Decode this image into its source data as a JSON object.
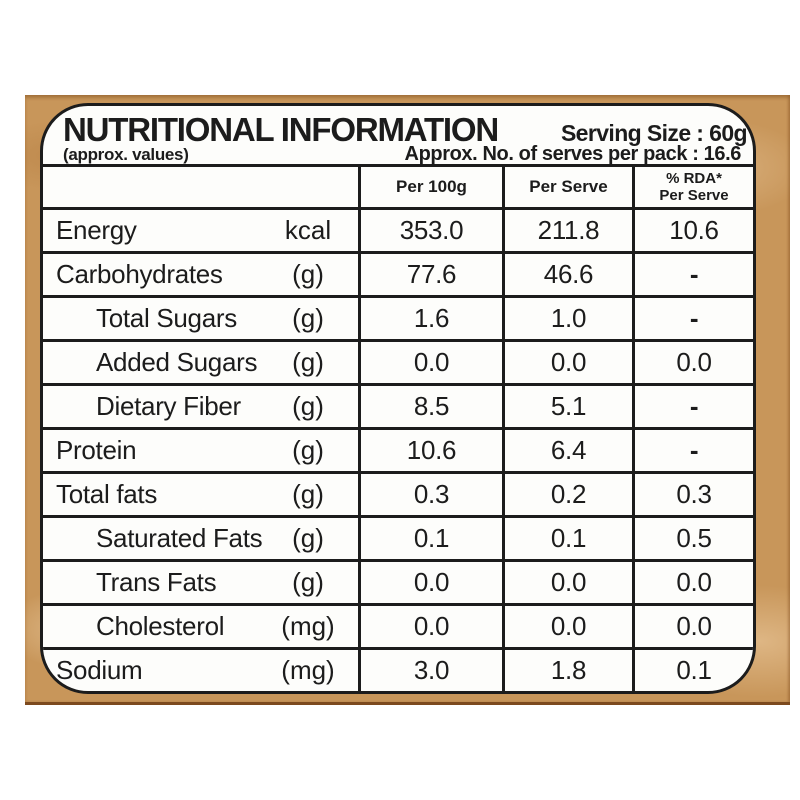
{
  "header": {
    "title": "NUTRITIONAL INFORMATION",
    "approx_note": "(approx. values)",
    "serving_size": "Serving Size : 60g",
    "serves_per_pack": "Approx. No. of serves per pack : 16.6"
  },
  "table": {
    "col_headers": {
      "per_100g": "Per 100g",
      "per_serve": "Per Serve",
      "rda_line1": "% RDA*",
      "rda_line2": "Per Serve"
    },
    "rows": [
      {
        "name": "Energy",
        "unit": "kcal",
        "per_100g": "353.0",
        "per_serve": "211.8",
        "rda": "10.6",
        "indent": 0
      },
      {
        "name": "Carbohydrates",
        "unit": "(g)",
        "per_100g": "77.6",
        "per_serve": "46.6",
        "rda": "-",
        "indent": 0
      },
      {
        "name": "Total Sugars",
        "unit": "(g)",
        "per_100g": "1.6",
        "per_serve": "1.0",
        "rda": "-",
        "indent": 1
      },
      {
        "name": "Added Sugars",
        "unit": "(g)",
        "per_100g": "0.0",
        "per_serve": "0.0",
        "rda": "0.0",
        "indent": 1
      },
      {
        "name": "Dietary Fiber",
        "unit": "(g)",
        "per_100g": "8.5",
        "per_serve": "5.1",
        "rda": "-",
        "indent": 1
      },
      {
        "name": "Protein",
        "unit": "(g)",
        "per_100g": "10.6",
        "per_serve": "6.4",
        "rda": "-",
        "indent": 0
      },
      {
        "name": "Total fats",
        "unit": "(g)",
        "per_100g": "0.3",
        "per_serve": "0.2",
        "rda": "0.3",
        "indent": 0
      },
      {
        "name": "Saturated Fats",
        "unit": "(g)",
        "per_100g": "0.1",
        "per_serve": "0.1",
        "rda": "0.5",
        "indent": 1
      },
      {
        "name": "Trans Fats",
        "unit": "(g)",
        "per_100g": "0.0",
        "per_serve": "0.0",
        "rda": "0.0",
        "indent": 1
      },
      {
        "name": "Cholesterol",
        "unit": "(mg)",
        "per_100g": "0.0",
        "per_serve": "0.0",
        "rda": "0.0",
        "indent": 1
      },
      {
        "name": "Sodium",
        "unit": "(mg)",
        "per_100g": "3.0",
        "per_serve": "1.8",
        "rda": "0.1",
        "indent": 0
      }
    ]
  },
  "colors": {
    "band": "#c8965a",
    "band_edge": "#7c4a1e",
    "ink": "#1c1c1c",
    "card_bg": "#fdfdfb"
  }
}
